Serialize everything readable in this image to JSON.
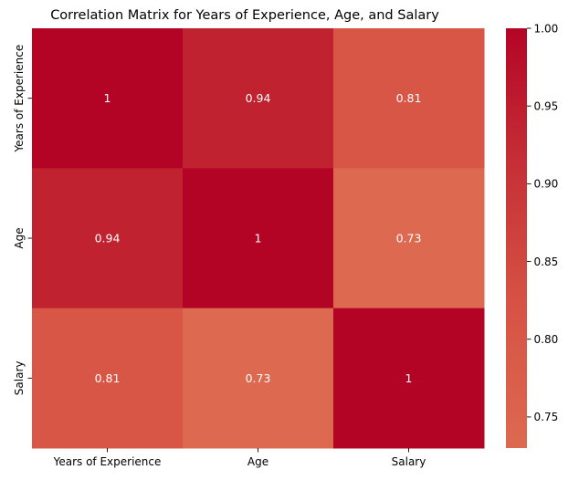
{
  "chart_data": {
    "type": "heatmap",
    "title": "Correlation Matrix for Years of Experience, Age, and Salary",
    "x_categories": [
      "Years of Experience",
      "Age",
      "Salary"
    ],
    "y_categories": [
      "Years of Experience",
      "Age",
      "Salary"
    ],
    "values": [
      [
        1,
        0.94,
        0.81
      ],
      [
        0.94,
        1,
        0.73
      ],
      [
        0.81,
        0.73,
        1
      ]
    ],
    "cell_labels": [
      [
        "1",
        "0.94",
        "0.81"
      ],
      [
        "0.94",
        "1",
        "0.73"
      ],
      [
        "0.81",
        "0.73",
        "1"
      ]
    ],
    "colormap": "coolwarm",
    "color_range": [
      0.73,
      1.0
    ],
    "colorbar": {
      "ticks": [
        0.75,
        0.8,
        0.85,
        0.9,
        0.95,
        1.0
      ],
      "tick_labels": [
        "0.75",
        "0.80",
        "0.85",
        "0.90",
        "0.95",
        "1.00"
      ],
      "placement": "right"
    },
    "annotation_color": "#ffffff",
    "grid": false
  }
}
